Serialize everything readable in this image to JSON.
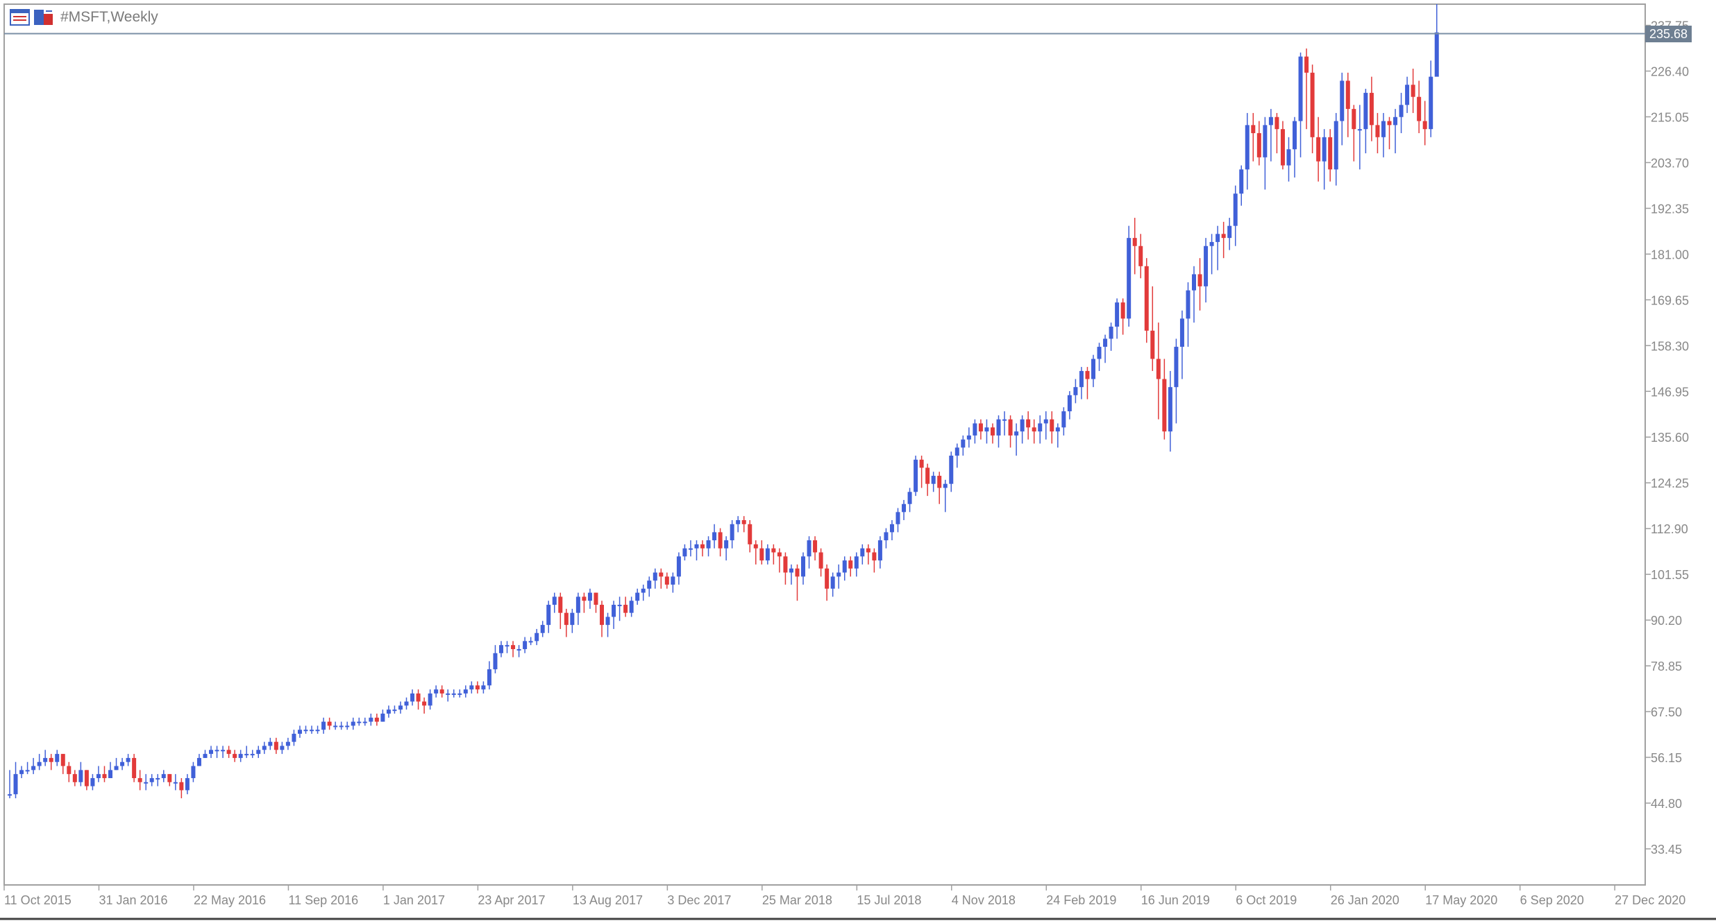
{
  "window": {
    "symbol_title": "#MSFT,Weekly"
  },
  "toolbar": {
    "icons": [
      "chart-window-icon",
      "chart-properties-icon"
    ]
  },
  "current_price": {
    "label": "235.68",
    "value": 235.68,
    "line_color": "#7b8fa6"
  },
  "colors": {
    "bull": "#4060d8",
    "bear": "#e23a3a",
    "frame": "#a0a0a0",
    "axis_text": "#888888"
  },
  "chart_data": {
    "type": "candlestick",
    "title": "#MSFT,Weekly",
    "xlabel": "",
    "ylabel": "",
    "ylim": [
      24.5,
      243
    ],
    "y_ticks": [
      "237.75",
      "226.40",
      "215.05",
      "203.70",
      "192.35",
      "181.00",
      "169.65",
      "158.30",
      "146.95",
      "135.60",
      "124.25",
      "112.90",
      "101.55",
      "90.20",
      "78.85",
      "67.50",
      "56.15",
      "44.80",
      "33.45"
    ],
    "x_tick_labels": [
      "11 Oct 2015",
      "31 Jan 2016",
      "22 May 2016",
      "11 Sep 2016",
      "1 Jan 2017",
      "23 Apr 2017",
      "13 Aug 2017",
      "3 Dec 2017",
      "25 Mar 2018",
      "15 Jul 2018",
      "4 Nov 2018",
      "24 Feb 2019",
      "16 Jun 2019",
      "6 Oct 2019",
      "26 Jan 2020",
      "17 May 2020",
      "6 Sep 2020",
      "27 Dec 2020"
    ],
    "x_tick_bar_index": [
      0,
      16,
      32,
      48,
      64,
      80,
      96,
      112,
      128,
      144,
      160,
      176,
      192,
      208,
      224,
      240,
      256,
      272
    ],
    "grid": false,
    "closes": [
      47,
      52,
      53,
      53,
      54,
      55,
      56,
      55,
      57,
      54,
      52,
      50,
      53,
      49,
      51,
      52,
      51,
      53,
      54,
      55,
      56,
      51,
      50,
      50,
      51,
      51,
      52,
      50,
      50,
      48,
      51,
      54,
      56,
      57,
      58,
      58,
      58,
      57,
      56,
      57,
      57,
      57,
      58,
      59,
      60,
      58,
      59,
      60,
      62,
      63,
      63,
      63,
      63,
      65,
      64,
      64,
      64,
      64,
      65,
      65,
      65,
      66,
      65,
      67,
      68,
      68,
      69,
      70,
      72,
      70,
      69,
      72,
      73,
      72,
      72,
      72,
      72,
      73,
      74,
      73,
      74,
      78,
      82,
      84,
      84,
      83,
      83,
      85,
      85,
      87,
      89,
      94,
      96,
      92,
      89,
      92,
      96,
      95,
      97,
      94,
      89,
      91,
      94,
      94,
      92,
      95,
      97,
      98,
      100,
      102,
      101,
      99,
      101,
      106,
      108,
      108,
      109,
      108,
      110,
      112,
      108,
      110,
      114,
      115,
      114,
      109,
      108,
      105,
      108,
      107,
      106,
      102,
      103,
      101,
      106,
      110,
      107,
      103,
      98,
      101,
      102,
      105,
      103,
      106,
      108,
      107,
      105,
      110,
      112,
      114,
      117,
      119,
      122,
      130,
      128,
      124,
      126,
      123,
      124,
      131,
      133,
      135,
      136,
      139,
      137,
      138,
      136,
      140,
      140,
      136,
      137,
      140,
      138,
      137,
      139,
      140,
      137,
      138,
      142,
      146,
      148,
      152,
      150,
      155,
      158,
      160,
      163,
      169,
      165,
      185,
      183,
      178,
      162,
      155,
      150,
      137,
      148,
      158,
      165,
      172,
      176,
      173,
      183,
      184,
      186,
      185,
      188,
      196,
      202,
      213,
      211,
      205,
      213,
      215,
      212,
      203,
      207,
      214,
      230,
      226,
      210,
      204,
      210,
      202,
      214,
      224,
      217,
      212,
      212,
      221,
      213,
      210,
      214,
      213,
      215,
      218,
      223,
      220,
      214,
      212,
      225,
      236
    ],
    "highs": [
      53,
      55,
      54,
      55,
      56,
      57,
      58,
      57,
      58,
      57,
      55,
      53,
      55,
      53,
      52,
      54,
      54,
      55,
      56,
      56,
      57,
      57,
      53,
      52,
      52,
      52,
      53,
      52,
      52,
      51,
      52,
      55,
      57,
      58,
      59,
      59,
      59,
      59,
      58,
      58,
      59,
      58,
      59,
      60,
      61,
      61,
      60,
      61,
      63,
      64,
      64,
      64,
      64,
      66,
      66,
      65,
      65,
      65,
      66,
      66,
      66,
      67,
      67,
      68,
      69,
      69,
      70,
      71,
      73,
      73,
      71,
      73,
      74,
      74,
      73,
      73,
      73,
      74,
      75,
      75,
      75,
      80,
      84,
      85,
      85,
      85,
      84,
      86,
      86,
      88,
      90,
      95,
      97,
      97,
      93,
      93,
      97,
      97,
      98,
      97,
      95,
      92,
      95,
      96,
      96,
      96,
      98,
      99,
      101,
      103,
      103,
      102,
      102,
      107,
      109,
      110,
      110,
      110,
      111,
      114,
      113,
      111,
      115,
      116,
      116,
      115,
      110,
      110,
      109,
      109,
      108,
      107,
      104,
      104,
      107,
      111,
      111,
      108,
      104,
      102,
      104,
      106,
      106,
      107,
      109,
      109,
      108,
      111,
      113,
      115,
      118,
      120,
      123,
      131,
      131,
      129,
      127,
      127,
      125,
      132,
      134,
      136,
      138,
      140,
      140,
      140,
      139,
      141,
      142,
      141,
      139,
      141,
      142,
      140,
      141,
      142,
      142,
      139,
      143,
      147,
      150,
      153,
      153,
      156,
      159,
      161,
      164,
      170,
      170,
      188,
      190,
      186,
      180,
      173,
      164,
      155,
      152,
      160,
      167,
      174,
      178,
      180,
      185,
      186,
      188,
      189,
      190,
      198,
      203,
      216,
      216,
      214,
      215,
      217,
      216,
      214,
      210,
      215,
      231,
      232,
      228,
      215,
      212,
      212,
      216,
      226,
      226,
      218,
      218,
      222,
      225,
      216,
      216,
      215,
      217,
      221,
      225,
      227,
      224,
      219,
      229,
      243
    ],
    "lows": [
      46,
      46,
      51,
      52,
      52,
      53,
      54,
      53,
      54,
      52,
      50,
      49,
      49,
      48,
      48,
      50,
      50,
      51,
      53,
      53,
      54,
      50,
      48,
      48,
      49,
      49,
      50,
      49,
      48,
      46,
      47,
      50,
      54,
      56,
      56,
      56,
      56,
      56,
      55,
      55,
      56,
      56,
      56,
      57,
      58,
      57,
      57,
      58,
      59,
      61,
      62,
      62,
      62,
      62,
      63,
      63,
      63,
      63,
      63,
      64,
      64,
      64,
      64,
      65,
      66,
      67,
      67,
      68,
      69,
      68,
      67,
      68,
      71,
      71,
      70,
      71,
      71,
      71,
      72,
      72,
      72,
      73,
      77,
      81,
      82,
      81,
      81,
      82,
      84,
      84,
      86,
      87,
      92,
      88,
      86,
      87,
      89,
      92,
      93,
      92,
      86,
      86,
      88,
      90,
      91,
      91,
      94,
      95,
      96,
      98,
      98,
      98,
      97,
      99,
      105,
      106,
      105,
      106,
      106,
      108,
      106,
      105,
      108,
      112,
      112,
      107,
      104,
      104,
      104,
      104,
      102,
      99,
      99,
      95,
      99,
      103,
      105,
      101,
      95,
      96,
      98,
      100,
      101,
      101,
      104,
      104,
      102,
      103,
      108,
      110,
      112,
      115,
      117,
      121,
      123,
      121,
      122,
      119,
      117,
      122,
      128,
      131,
      133,
      134,
      135,
      134,
      134,
      133,
      136,
      133,
      131,
      134,
      135,
      134,
      134,
      135,
      134,
      133,
      136,
      140,
      144,
      145,
      145,
      148,
      152,
      154,
      157,
      160,
      161,
      163,
      176,
      175,
      159,
      152,
      140,
      135,
      132,
      139,
      150,
      158,
      164,
      167,
      169,
      176,
      177,
      180,
      182,
      183,
      193,
      197,
      204,
      203,
      197,
      204,
      206,
      202,
      199,
      200,
      205,
      212,
      206,
      199,
      197,
      199,
      198,
      208,
      210,
      204,
      202,
      206,
      209,
      206,
      205,
      207,
      206,
      211,
      216,
      216,
      211,
      208,
      210,
      226
    ]
  }
}
